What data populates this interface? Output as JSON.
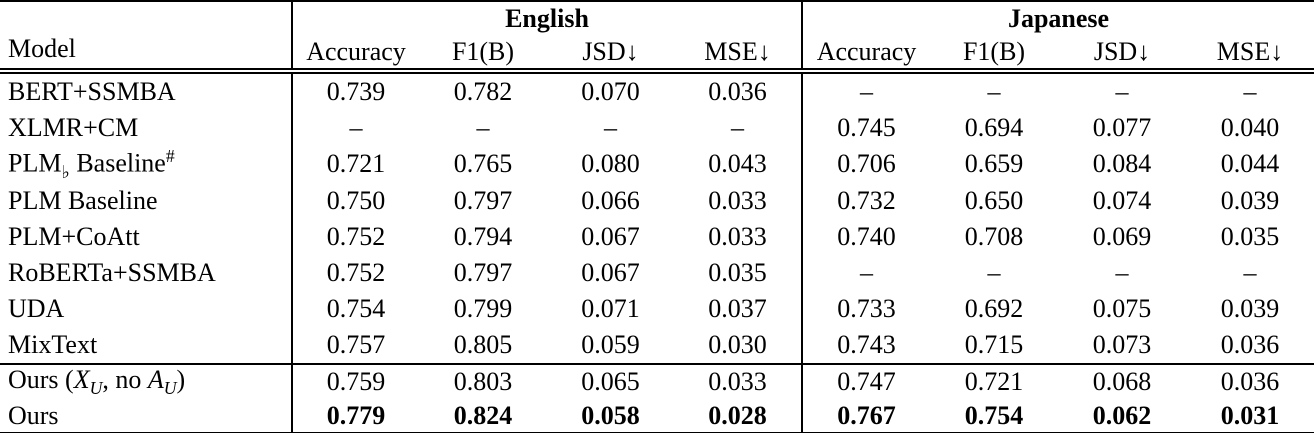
{
  "table": {
    "headers": {
      "model": "Model",
      "groups": {
        "english": "English",
        "japanese": "Japanese"
      },
      "metrics": [
        "Accuracy",
        "F1(B)",
        "JSD↓",
        "MSE↓"
      ]
    },
    "rows": [
      {
        "model": "BERT+SSMBA",
        "en": [
          "0.739",
          "0.782",
          "0.070",
          "0.036"
        ],
        "ja": [
          "–",
          "–",
          "–",
          "–"
        ]
      },
      {
        "model": "XLMR+CM",
        "en": [
          "–",
          "–",
          "–",
          "–"
        ],
        "ja": [
          "0.745",
          "0.694",
          "0.077",
          "0.040"
        ]
      },
      {
        "model_parts": {
          "base": "PLM",
          "sub": "♭",
          "rest": " Baseline",
          "sup": "#"
        },
        "en": [
          "0.721",
          "0.765",
          "0.080",
          "0.043"
        ],
        "ja": [
          "0.706",
          "0.659",
          "0.084",
          "0.044"
        ]
      },
      {
        "model": "PLM Baseline",
        "en": [
          "0.750",
          "0.797",
          "0.066",
          "0.033"
        ],
        "ja": [
          "0.732",
          "0.650",
          "0.074",
          "0.039"
        ]
      },
      {
        "model": "PLM+CoAtt",
        "en": [
          "0.752",
          "0.794",
          "0.067",
          "0.033"
        ],
        "ja": [
          "0.740",
          "0.708",
          "0.069",
          "0.035"
        ]
      },
      {
        "model": "RoBERTa+SSMBA",
        "en": [
          "0.752",
          "0.797",
          "0.067",
          "0.035"
        ],
        "ja": [
          "–",
          "–",
          "–",
          "–"
        ]
      },
      {
        "model": "UDA",
        "en": [
          "0.754",
          "0.799",
          "0.071",
          "0.037"
        ],
        "ja": [
          "0.733",
          "0.692",
          "0.075",
          "0.039"
        ]
      },
      {
        "model": "MixText",
        "en": [
          "0.757",
          "0.805",
          "0.059",
          "0.030"
        ],
        "ja": [
          "0.743",
          "0.715",
          "0.073",
          "0.036"
        ]
      },
      {
        "model_parts": {
          "p0": "Ours (",
          "x": "X",
          "xsub": "U",
          "mid": ", no ",
          "a": "A",
          "asub": "U",
          "p1": ")"
        },
        "en": [
          "0.759",
          "0.803",
          "0.065",
          "0.033"
        ],
        "ja": [
          "0.747",
          "0.721",
          "0.068",
          "0.036"
        ]
      },
      {
        "model": "Ours",
        "en": [
          "0.779",
          "0.824",
          "0.058",
          "0.028"
        ],
        "ja": [
          "0.767",
          "0.754",
          "0.062",
          "0.031"
        ]
      }
    ]
  }
}
